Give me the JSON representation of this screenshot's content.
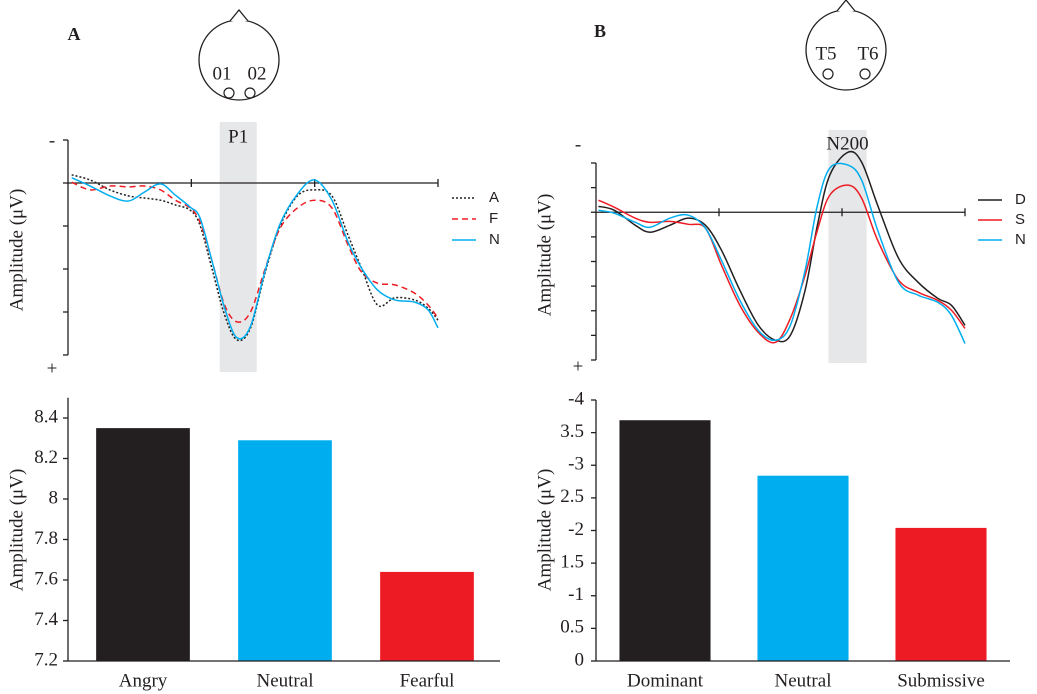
{
  "chart_data": [
    {
      "type": "line",
      "panel": "A",
      "electrodes": [
        "01",
        "02"
      ],
      "ylabel": "Amplitude (μV)",
      "y_top_label": "-",
      "y_bottom_label": "+",
      "x": [
        0.03,
        0.18,
        0.34,
        0.49,
        0.62,
        0.75,
        0.87,
        0.99,
        1.07,
        1.17,
        1.27,
        1.37,
        1.48,
        1.6,
        1.72,
        1.86,
        2.0,
        2.14,
        2.27,
        2.38,
        2.51,
        2.65,
        2.81,
        2.92,
        3.0
      ],
      "xlim": [
        0,
        3
      ],
      "xticks": [
        1,
        2,
        3
      ],
      "ylim": [
        4,
        -1
      ],
      "yticks": [
        -1,
        0,
        1,
        2,
        3,
        4
      ],
      "highlight": {
        "label": "P1",
        "xlim": [
          1.23,
          1.53
        ],
        "color": "#e6e7e8"
      },
      "legend": "right",
      "series": [
        {
          "name": "A",
          "color": "#231f20",
          "dash": "dotted",
          "values": [
            -0.19,
            -0.07,
            0.16,
            0.3,
            0.35,
            0.4,
            0.51,
            0.63,
            0.98,
            2.02,
            3.07,
            3.65,
            3.37,
            2.07,
            1.0,
            0.3,
            0.16,
            0.3,
            1.21,
            1.98,
            2.84,
            2.67,
            2.72,
            2.91,
            3.19
          ]
        },
        {
          "name": "F",
          "color": "#ed1c24",
          "dash": "dashed",
          "values": [
            -0.02,
            0.16,
            0.07,
            0.09,
            0.07,
            0.16,
            0.4,
            0.58,
            0.91,
            1.84,
            2.84,
            3.23,
            3.0,
            1.98,
            1.05,
            0.58,
            0.4,
            0.58,
            1.44,
            2.07,
            2.33,
            2.37,
            2.56,
            2.84,
            3.14
          ]
        },
        {
          "name": "N",
          "color": "#00aeef",
          "dash": "solid",
          "values": [
            -0.12,
            0.07,
            0.3,
            0.42,
            0.21,
            0.02,
            0.28,
            0.56,
            0.81,
            1.84,
            2.91,
            3.6,
            3.33,
            2.02,
            0.95,
            0.26,
            -0.07,
            0.4,
            1.37,
            1.98,
            2.49,
            2.72,
            2.77,
            2.95,
            3.37
          ]
        }
      ]
    },
    {
      "type": "line",
      "panel": "B",
      "electrodes": [
        "T5",
        "T6"
      ],
      "ylabel": "Amplitude (μV)",
      "y_top_label": "-",
      "y_bottom_label": "+",
      "x": [
        0.02,
        0.15,
        0.32,
        0.44,
        0.6,
        0.75,
        0.89,
        1.02,
        1.17,
        1.32,
        1.46,
        1.58,
        1.7,
        1.8,
        1.9,
        2.05,
        2.16,
        2.29,
        2.46,
        2.62,
        2.78,
        2.89,
        3.0
      ],
      "xlim": [
        0,
        3
      ],
      "xticks": [
        1,
        2,
        3
      ],
      "ylim": [
        6,
        -2
      ],
      "yticks": [
        -2,
        -1,
        0,
        1,
        2,
        3,
        4,
        5,
        6
      ],
      "highlight": {
        "label": "N200",
        "xlim": [
          1.89,
          2.2
        ],
        "color": "#e6e7e8"
      },
      "legend": "right",
      "series": [
        {
          "name": "D",
          "color": "#231f20",
          "dash": "solid",
          "values": [
            -0.24,
            -0.08,
            0.53,
            0.81,
            0.53,
            0.24,
            0.53,
            1.54,
            3.17,
            4.59,
            5.2,
            5.0,
            3.17,
            0.53,
            -1.5,
            -2.44,
            -2.03,
            -0.28,
            1.87,
            2.85,
            3.5,
            3.78,
            4.59
          ]
        },
        {
          "name": "S",
          "color": "#ed1c24",
          "dash": "solid",
          "values": [
            -0.49,
            -0.2,
            0.24,
            0.41,
            0.37,
            0.49,
            0.65,
            2.15,
            3.78,
            4.88,
            5.28,
            4.31,
            2.56,
            0.73,
            -0.69,
            -1.1,
            -0.57,
            1.14,
            2.76,
            3.25,
            3.58,
            3.98,
            4.72
          ]
        },
        {
          "name": "N",
          "color": "#00aeef",
          "dash": "solid",
          "values": [
            -0.08,
            0.04,
            0.41,
            0.61,
            0.24,
            0.12,
            0.65,
            1.95,
            3.58,
            4.8,
            5.2,
            4.59,
            2.36,
            -0.28,
            -1.79,
            -1.91,
            -1.3,
            0.73,
            2.85,
            3.37,
            3.66,
            4.19,
            5.33
          ]
        }
      ]
    },
    {
      "type": "bar",
      "ylabel": "Amplitude (μV)",
      "categories": [
        "Angry",
        "Neutral",
        "Fearful"
      ],
      "values": [
        8.35,
        8.29,
        7.64
      ],
      "colors": [
        "#231f20",
        "#00aeef",
        "#ed1c24"
      ],
      "ylim": [
        7.2,
        8.5
      ],
      "yticks": [
        7.2,
        7.4,
        7.6,
        7.8,
        8,
        8.2,
        8.4
      ]
    },
    {
      "type": "bar",
      "ylabel": "Amplitude (μV)",
      "categories": [
        "Dominant",
        "Neutral",
        "Submissive"
      ],
      "values": [
        -3.69,
        -2.84,
        -2.04
      ],
      "colors": [
        "#231f20",
        "#00aeef",
        "#ed1c24"
      ],
      "ylim": [
        0,
        -4
      ],
      "yticks": [
        0,
        {
          "value": -0.5,
          "label": "0.5"
        },
        -1,
        {
          "value": -1.5,
          "label": "1.5"
        },
        -2,
        {
          "value": -2.5,
          "label": "2.5"
        },
        -3,
        {
          "value": -3.5,
          "label": "3.5"
        },
        -4
      ]
    }
  ]
}
